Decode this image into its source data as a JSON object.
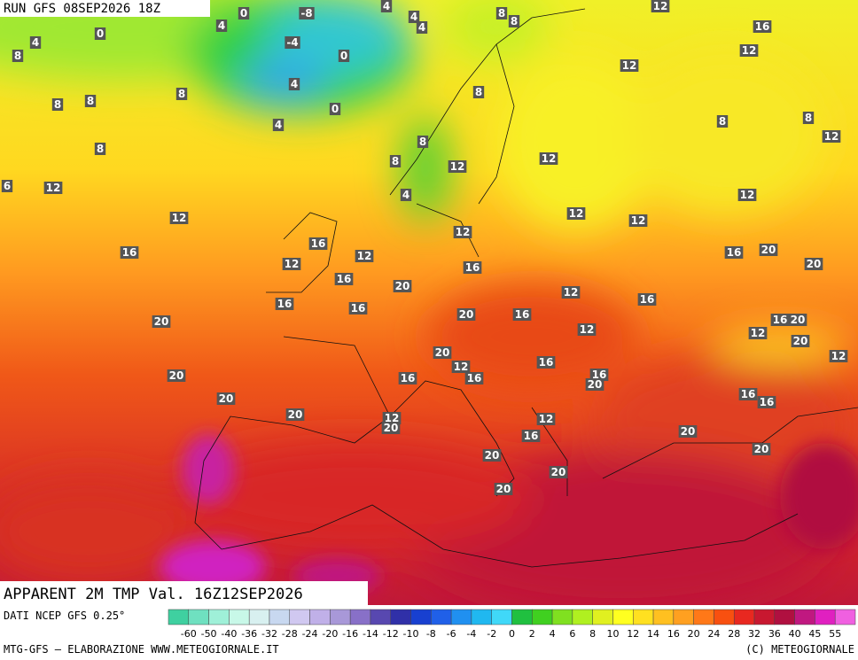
{
  "header": {
    "run": "RUN GFS 08SEP2026 18Z"
  },
  "map": {
    "title": "APPARENT 2M TMP Val. 16Z12SEP2026",
    "contour_labels": [
      0,
      -8,
      4,
      4,
      4,
      8,
      8,
      12,
      16,
      4,
      4,
      0,
      -4,
      0,
      8,
      4,
      8,
      8,
      8,
      0,
      4,
      8,
      12,
      12,
      8,
      8,
      12,
      8,
      8,
      8,
      12,
      12,
      6,
      12,
      4,
      12,
      12,
      12,
      12,
      12,
      16,
      16,
      12,
      16,
      16,
      20,
      20,
      12,
      16,
      20,
      12,
      16,
      16,
      16,
      20,
      16,
      16,
      20,
      20,
      12,
      12,
      20,
      20,
      12,
      16,
      12,
      20,
      16,
      16,
      16,
      20,
      20,
      16,
      16,
      20,
      12,
      12,
      20,
      16,
      20,
      20,
      20,
      20,
      20
    ]
  },
  "legend": {
    "source": "DATI NCEP GFS 0.25°",
    "labels": [
      -60,
      -50,
      -40,
      -36,
      -32,
      -28,
      -24,
      -20,
      -16,
      -14,
      -12,
      -10,
      -8,
      -6,
      -4,
      -2,
      0,
      2,
      4,
      6,
      8,
      10,
      12,
      14,
      16,
      20,
      24,
      28,
      32,
      36,
      40,
      45,
      55
    ],
    "colors": [
      "#3fd0a0",
      "#6fe0c0",
      "#9ff0d8",
      "#c8f8e8",
      "#d8f0f0",
      "#c8d8f0",
      "#d0c8f0",
      "#c0b0e8",
      "#a898d8",
      "#8870c8",
      "#5848b0",
      "#3030a8",
      "#1840d0",
      "#2060e8",
      "#2090f0",
      "#20b8f0",
      "#40d8f8",
      "#20c040",
      "#40d020",
      "#80e020",
      "#b0f020",
      "#e0f020",
      "#ffff20",
      "#ffe020",
      "#ffc020",
      "#ffa020",
      "#ff7818",
      "#f85010",
      "#e82820",
      "#c81830",
      "#b01040",
      "#c01880",
      "#e020c0",
      "#f060e0"
    ]
  },
  "footer": {
    "left": "MTG-GFS — ELABORAZIONE WWW.METEOGIORNALE.IT",
    "right": "(C) METEOGIORNALE"
  }
}
